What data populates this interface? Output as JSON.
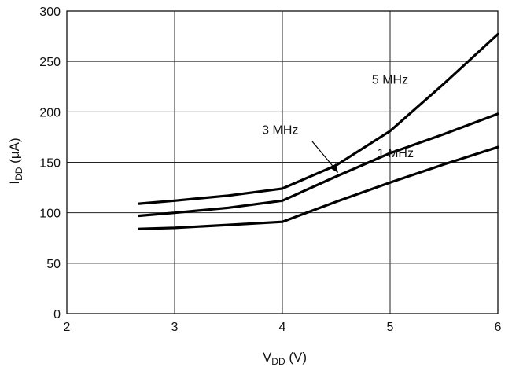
{
  "chart_data": {
    "type": "line",
    "x_ticks": [
      "2",
      "3",
      "4",
      "5",
      "6"
    ],
    "y_ticks": [
      "0",
      "50",
      "100",
      "150",
      "200",
      "250",
      "300"
    ],
    "xlim": [
      2,
      6
    ],
    "ylim": [
      0,
      300
    ],
    "grid": true,
    "xlabel": {
      "main": "V",
      "sub": "DD",
      "unit": " (V)"
    },
    "ylabel": {
      "main": "I",
      "sub": "DD",
      "unit": " (μA)"
    },
    "series": [
      {
        "name": "5 MHz",
        "x": [
          2.67,
          3.0,
          3.5,
          4.0,
          4.5,
          5.0,
          5.5,
          6.0
        ],
        "y": [
          109,
          112,
          117,
          124,
          147,
          181,
          228,
          277
        ]
      },
      {
        "name": "3 MHz",
        "x": [
          2.67,
          3.0,
          3.5,
          4.0,
          4.5,
          5.0,
          5.5,
          6.0
        ],
        "y": [
          97,
          100,
          105,
          112,
          136,
          159,
          178,
          198
        ]
      },
      {
        "name": "1 MHz",
        "x": [
          2.67,
          3.0,
          3.5,
          4.0,
          4.5,
          5.0,
          5.5,
          6.0
        ],
        "y": [
          84,
          85,
          88,
          91,
          111,
          130,
          148,
          165
        ]
      }
    ],
    "annotations": [
      {
        "text": "5 MHz",
        "x": 5.0,
        "y": 228
      },
      {
        "text": "3 MHz",
        "x": 3.98,
        "y": 178
      },
      {
        "text": "1 MHz",
        "x": 5.05,
        "y": 155
      }
    ]
  }
}
